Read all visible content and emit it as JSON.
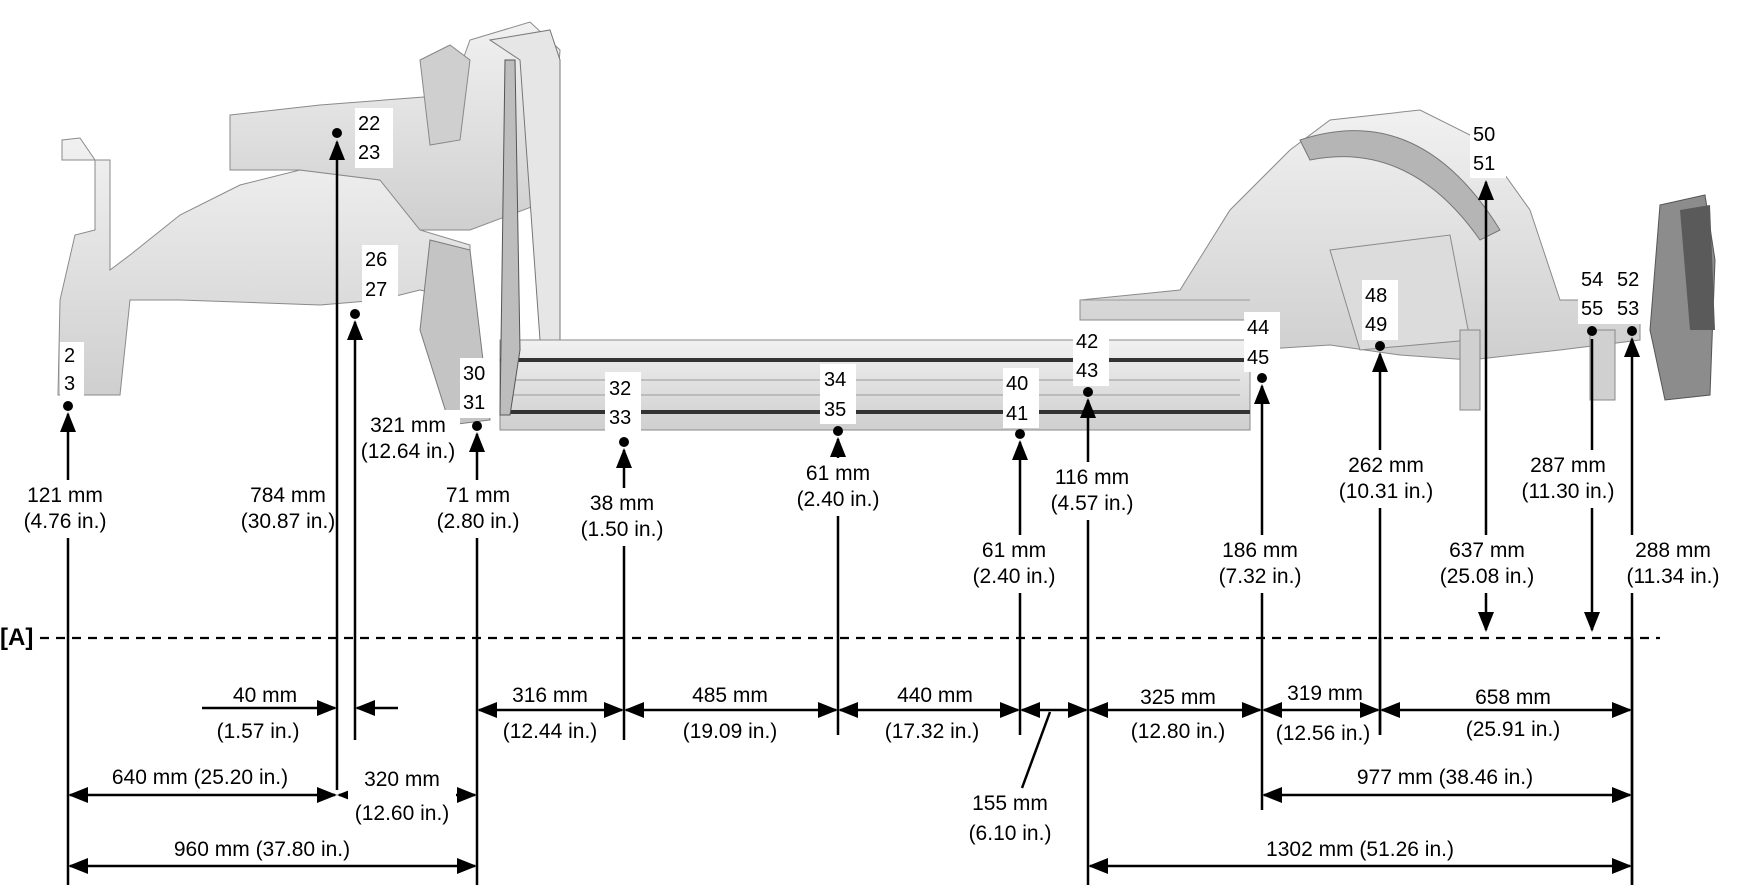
{
  "reference_label": "[A]",
  "points": [
    {
      "ids": [
        "2",
        "3"
      ],
      "height": "121 mm",
      "height_in": "(4.76 in.)"
    },
    {
      "ids": [
        "22",
        "23"
      ],
      "height": "784 mm",
      "height_in": "(30.87 in.)"
    },
    {
      "ids": [
        "26",
        "27"
      ],
      "height": "321 mm",
      "height_in": "(12.64 in.)"
    },
    {
      "ids": [
        "30",
        "31"
      ],
      "height": "71 mm",
      "height_in": "(2.80 in.)"
    },
    {
      "ids": [
        "32",
        "33"
      ],
      "height": "38 mm",
      "height_in": "(1.50 in.)"
    },
    {
      "ids": [
        "34",
        "35"
      ],
      "height": "61 mm",
      "height_in": "(2.40 in.)"
    },
    {
      "ids": [
        "40",
        "41"
      ],
      "height": "61 mm",
      "height_in": "(2.40 in.)"
    },
    {
      "ids": [
        "42",
        "43"
      ],
      "height": "116 mm",
      "height_in": "(4.57 in.)"
    },
    {
      "ids": [
        "44",
        "45"
      ],
      "height": "186 mm",
      "height_in": "(7.32 in.)"
    },
    {
      "ids": [
        "48",
        "49"
      ],
      "height": "262 mm",
      "height_in": "(10.31 in.)"
    },
    {
      "ids": [
        "50",
        "51"
      ],
      "height": "637 mm",
      "height_in": "(25.08 in.)"
    },
    {
      "ids": [
        "54",
        "55"
      ],
      "height": "287 mm",
      "height_in": "(11.30 in.)"
    },
    {
      "ids": [
        "52",
        "53"
      ],
      "height": "288 mm",
      "height_in": "(11.34 in.)"
    }
  ],
  "horizontal_dims": [
    {
      "mm": "40 mm",
      "in": "(1.57 in.)"
    },
    {
      "mm": "316 mm",
      "in": "(12.44 in.)"
    },
    {
      "mm": "485 mm",
      "in": "(19.09 in.)"
    },
    {
      "mm": "440 mm",
      "in": "(17.32 in.)"
    },
    {
      "mm": "325 mm",
      "in": "(12.80 in.)"
    },
    {
      "mm": "319 mm",
      "in": "(12.56 in.)"
    },
    {
      "mm": "658 mm",
      "in": "(25.91 in.)"
    },
    {
      "mm": "640 mm (25.20 in.)",
      "in": ""
    },
    {
      "mm": "320 mm",
      "in": "(12.60 in.)"
    },
    {
      "mm": "977 mm (38.46 in.)",
      "in": ""
    },
    {
      "mm": "155 mm",
      "in": "(6.10 in.)"
    },
    {
      "mm": "960 mm (37.80 in.)",
      "in": ""
    },
    {
      "mm": "1302 mm (51.26 in.)",
      "in": ""
    }
  ],
  "colors": {
    "line": "#000000",
    "body": "#d9d9d9",
    "body_light": "#eeeeee",
    "body_dark": "#9a9a9a"
  }
}
